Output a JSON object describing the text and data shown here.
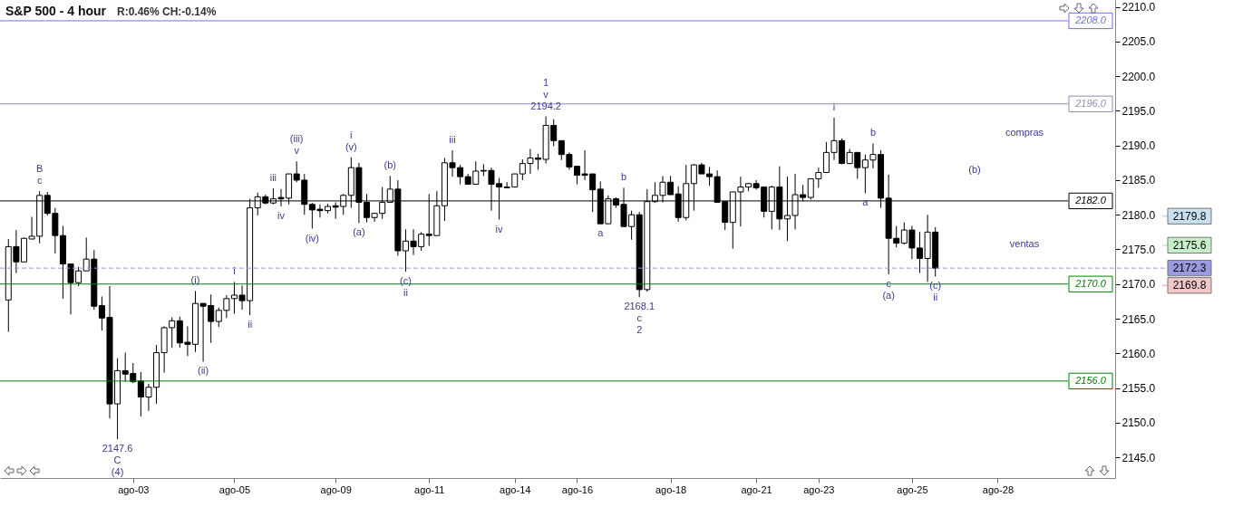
{
  "chart_data": {
    "type": "candlestick",
    "title": "S&P 500 - 4 hour",
    "subtitle": "R:0.46%  CH:-0.14%",
    "color": "#000000",
    "categories": [
      null,
      null,
      null,
      null,
      null,
      null,
      null,
      null,
      null,
      null,
      null,
      null,
      null,
      null,
      null,
      null,
      "ago-03",
      null,
      null,
      null,
      null,
      null,
      null,
      null,
      null,
      null,
      null,
      null,
      null,
      "ago-05",
      null,
      null,
      null,
      null,
      null,
      null,
      null,
      null,
      null,
      null,
      null,
      null,
      "ago-09",
      null,
      null,
      null,
      null,
      null,
      null,
      null,
      null,
      null,
      null,
      null,
      "ago-11",
      null,
      null,
      null,
      null,
      null,
      null,
      null,
      null,
      null,
      null,
      "ago-14",
      null,
      null,
      null,
      null,
      null,
      null,
      null,
      "ago-16",
      null,
      null,
      null,
      null,
      null,
      null,
      null,
      null,
      null,
      null,
      null,
      "ago-18",
      null,
      null,
      null,
      null,
      null,
      null,
      null,
      null,
      null,
      null,
      "ago-21",
      null,
      null,
      null,
      null,
      null,
      null,
      null,
      "ago-23",
      null,
      null,
      null,
      null,
      null,
      null,
      null,
      null,
      null,
      null,
      null,
      "ago-25",
      null,
      null,
      null,
      null,
      null,
      null,
      null,
      null,
      null,
      null,
      "ago-28",
      null,
      null,
      null,
      null,
      null,
      null,
      null,
      null,
      null,
      null,
      null,
      null,
      null,
      null
    ],
    "ohlc": [
      [
        2167.7,
        2176.5,
        2163.1,
        2175.4
      ],
      [
        2175.4,
        2177.8,
        2171.6,
        2173.2
      ],
      [
        2173.2,
        2176.7,
        2173.2,
        2176.6
      ],
      [
        2176.5,
        2179.7,
        2176.5,
        2176.9
      ],
      [
        2176.9,
        2183.4,
        2175.9,
        2182.8
      ],
      [
        2182.8,
        2183.3,
        2179.9,
        2180.2
      ],
      [
        2180.2,
        2181.0,
        2174.4,
        2177.0
      ],
      [
        2177.0,
        2178.4,
        2167.9,
        2172.9
      ],
      [
        2172.9,
        2172.9,
        2165.6,
        2170.2
      ],
      [
        2170.2,
        2172.5,
        2169.7,
        2171.9
      ],
      [
        2171.9,
        2176.7,
        2171.9,
        2173.6
      ],
      [
        2173.6,
        2174.9,
        2166.3,
        2166.8
      ],
      [
        2166.9,
        2168.2,
        2163.3,
        2165.1
      ],
      [
        2165.2,
        2169.7,
        2150.6,
        2152.7
      ],
      [
        2152.7,
        2159.3,
        2147.6,
        2157.5
      ],
      [
        2157.5,
        2160.1,
        2155.9,
        2157.0
      ],
      [
        2157.1,
        2158.6,
        2155.7,
        2155.9
      ],
      [
        2156.0,
        2157.3,
        2150.9,
        2153.7
      ],
      [
        2153.7,
        2155.6,
        2151.7,
        2155.1
      ],
      [
        2155.1,
        2161.2,
        2152.7,
        2160.1
      ],
      [
        2160.1,
        2163.9,
        2157.2,
        2163.7
      ],
      [
        2163.7,
        2165.2,
        2160.8,
        2164.7
      ],
      [
        2164.7,
        2165.3,
        2160.8,
        2161.5
      ],
      [
        2161.6,
        2163.9,
        2159.6,
        2161.3
      ],
      [
        2161.3,
        2169.0,
        2160.2,
        2167.2
      ],
      [
        2167.2,
        2167.2,
        2158.8,
        2166.8
      ],
      [
        2166.9,
        2168.5,
        2161.5,
        2164.6
      ],
      [
        2164.6,
        2166.6,
        2163.8,
        2166.2
      ],
      [
        2166.2,
        2168.4,
        2165.1,
        2167.9
      ],
      [
        2167.9,
        2170.3,
        2165.7,
        2168.4
      ],
      [
        2168.4,
        2169.8,
        2166.3,
        2167.6
      ],
      [
        2167.6,
        2182.3,
        2165.5,
        2181.0
      ],
      [
        2181.0,
        2183.2,
        2179.9,
        2182.6
      ],
      [
        2182.6,
        2182.9,
        2181.5,
        2181.7
      ],
      [
        2181.7,
        2183.8,
        2181.5,
        2182.3
      ],
      [
        2182.5,
        2183.7,
        2181.2,
        2182.3
      ],
      [
        2182.4,
        2185.9,
        2181.5,
        2185.9
      ],
      [
        2185.9,
        2187.7,
        2184.7,
        2185.0
      ],
      [
        2185.0,
        2185.9,
        2180.0,
        2181.5
      ],
      [
        2181.5,
        2181.7,
        2178.0,
        2180.7
      ],
      [
        2180.8,
        2181.5,
        2179.6,
        2180.6
      ],
      [
        2180.6,
        2181.6,
        2180.2,
        2181.2
      ],
      [
        2181.3,
        2181.8,
        2179.4,
        2181.1
      ],
      [
        2181.2,
        2183.0,
        2180.0,
        2182.8
      ],
      [
        2182.8,
        2188.3,
        2181.0,
        2186.8
      ],
      [
        2186.8,
        2187.5,
        2178.8,
        2181.8
      ],
      [
        2181.8,
        2183.0,
        2178.9,
        2179.6
      ],
      [
        2179.6,
        2180.3,
        2179.0,
        2180.2
      ],
      [
        2180.2,
        2184.0,
        2179.4,
        2181.8
      ],
      [
        2181.8,
        2185.6,
        2181.8,
        2183.7
      ],
      [
        2183.7,
        2185.0,
        2174.1,
        2174.8
      ],
      [
        2174.8,
        2177.9,
        2171.8,
        2176.2
      ],
      [
        2176.2,
        2177.9,
        2174.2,
        2175.4
      ],
      [
        2175.4,
        2177.5,
        2174.8,
        2177.2
      ],
      [
        2177.2,
        2183.0,
        2175.5,
        2177.0
      ],
      [
        2177.0,
        2183.4,
        2177.0,
        2181.3
      ],
      [
        2181.3,
        2188.2,
        2179.1,
        2187.5
      ],
      [
        2187.5,
        2189.3,
        2185.5,
        2186.8
      ],
      [
        2186.8,
        2187.2,
        2184.4,
        2185.5
      ],
      [
        2185.5,
        2185.9,
        2184.4,
        2184.4
      ],
      [
        2184.4,
        2187.7,
        2184.4,
        2186.3
      ],
      [
        2186.4,
        2187.3,
        2185.6,
        2186.3
      ],
      [
        2186.4,
        2186.8,
        2180.6,
        2184.4
      ],
      [
        2184.5,
        2185.3,
        2179.3,
        2184.0
      ],
      [
        2184.0,
        2184.7,
        2183.9,
        2183.9
      ],
      [
        2184.0,
        2185.9,
        2184.0,
        2185.9
      ],
      [
        2185.9,
        2188.0,
        2185.0,
        2187.4
      ],
      [
        2187.4,
        2189.5,
        2185.9,
        2188.2
      ],
      [
        2188.2,
        2188.8,
        2186.5,
        2188.0
      ],
      [
        2188.0,
        2194.2,
        2187.4,
        2192.9
      ],
      [
        2192.9,
        2193.8,
        2189.9,
        2190.7
      ],
      [
        2190.7,
        2190.7,
        2187.9,
        2188.7
      ],
      [
        2188.7,
        2189.0,
        2186.5,
        2186.9
      ],
      [
        2187.0,
        2187.0,
        2184.4,
        2185.7
      ],
      [
        2185.9,
        2189.3,
        2185.0,
        2185.7
      ],
      [
        2185.9,
        2185.9,
        2180.4,
        2183.6
      ],
      [
        2183.7,
        2184.8,
        2178.7,
        2178.7
      ],
      [
        2178.7,
        2182.8,
        2178.7,
        2182.3
      ],
      [
        2182.3,
        2182.5,
        2181.0,
        2181.4
      ],
      [
        2181.5,
        2183.9,
        2178.3,
        2178.3
      ],
      [
        2178.3,
        2180.6,
        2176.4,
        2180.0
      ],
      [
        2180.0,
        2180.4,
        2168.1,
        2169.2
      ],
      [
        2169.2,
        2183.7,
        2168.9,
        2181.9
      ],
      [
        2181.9,
        2184.7,
        2181.7,
        2182.8
      ],
      [
        2182.8,
        2185.6,
        2181.8,
        2184.7
      ],
      [
        2184.7,
        2185.6,
        2182.9,
        2182.9
      ],
      [
        2183.0,
        2184.1,
        2179.0,
        2179.6
      ],
      [
        2179.6,
        2187.2,
        2179.2,
        2184.5
      ],
      [
        2184.5,
        2187.3,
        2180.6,
        2187.2
      ],
      [
        2187.2,
        2187.5,
        2185.9,
        2185.9
      ],
      [
        2185.9,
        2186.9,
        2184.2,
        2185.5
      ],
      [
        2185.5,
        2186.4,
        2181.8,
        2181.8
      ],
      [
        2181.9,
        2181.9,
        2177.8,
        2178.9
      ],
      [
        2178.9,
        2183.3,
        2175.1,
        2183.3
      ],
      [
        2183.3,
        2185.5,
        2178.3,
        2184.0
      ],
      [
        2184.0,
        2184.5,
        2183.4,
        2184.5
      ],
      [
        2184.5,
        2185.0,
        2183.6,
        2183.9
      ],
      [
        2184.0,
        2184.0,
        2179.6,
        2180.5
      ],
      [
        2180.5,
        2184.2,
        2177.9,
        2184.0
      ],
      [
        2184.0,
        2187.0,
        2177.8,
        2179.4
      ],
      [
        2179.4,
        2185.5,
        2176.2,
        2179.9
      ],
      [
        2179.9,
        2185.9,
        2177.9,
        2182.9
      ],
      [
        2182.9,
        2184.3,
        2181.9,
        2182.5
      ],
      [
        2182.5,
        2185.2,
        2182.2,
        2185.2
      ],
      [
        2185.2,
        2186.8,
        2183.9,
        2186.1
      ],
      [
        2186.1,
        2190.5,
        2186.1,
        2189.0
      ],
      [
        2189.0,
        2194.0,
        2187.9,
        2190.7
      ],
      [
        2190.7,
        2191.0,
        2187.3,
        2187.4
      ],
      [
        2187.4,
        2189.5,
        2187.3,
        2189.0
      ],
      [
        2189.0,
        2189.0,
        2185.2,
        2186.8
      ],
      [
        2186.8,
        2188.7,
        2183.1,
        2187.9
      ],
      [
        2187.9,
        2190.3,
        2186.7,
        2188.7
      ],
      [
        2188.7,
        2189.3,
        2181.0,
        2182.4
      ],
      [
        2182.4,
        2185.8,
        2171.4,
        2176.6
      ],
      [
        2176.6,
        2178.4,
        2175.3,
        2175.9
      ],
      [
        2175.9,
        2178.9,
        2175.7,
        2177.8
      ],
      [
        2177.8,
        2178.4,
        2173.6,
        2175.2
      ],
      [
        2175.2,
        2177.5,
        2171.6,
        2173.7
      ],
      [
        2173.7,
        2180.0,
        2170.3,
        2177.5
      ],
      [
        2177.5,
        2178.2,
        2171.1,
        2172.3
      ],
      null,
      null,
      null,
      null,
      null,
      null,
      null,
      null,
      null,
      null,
      null,
      null,
      null,
      null,
      null,
      null,
      null,
      null,
      null,
      null,
      null,
      null
    ],
    "ylim": [
      2142,
      2211
    ],
    "yticks": [
      {
        "value": 2145,
        "label": "2145.0"
      },
      {
        "value": 2150,
        "label": "2150.0"
      },
      {
        "value": 2155,
        "label": "2155.0"
      },
      {
        "value": 2160,
        "label": "2160.0"
      },
      {
        "value": 2165,
        "label": "2165.0"
      },
      {
        "value": 2170,
        "label": "2170.0"
      },
      {
        "value": 2175,
        "label": "2175.0"
      },
      {
        "value": 2180,
        "label": "2180.0"
      },
      {
        "value": 2185,
        "label": "2185.0"
      },
      {
        "value": 2190,
        "label": "2190.0"
      },
      {
        "value": 2195,
        "label": "2195.0"
      },
      {
        "value": 2200,
        "label": "2200.0"
      },
      {
        "value": 2205,
        "label": "2205.0"
      },
      {
        "value": 2210,
        "label": "2210.0"
      }
    ],
    "ref_lines": [
      {
        "axis": "y",
        "value": 2208,
        "label": "2208.0",
        "color": "#6f6fe8",
        "line_style": "solid"
      },
      {
        "axis": "y",
        "value": 2196,
        "label": "2196.0",
        "color": "#8c8cb4",
        "line_style": "solid"
      },
      {
        "axis": "y",
        "value": 2182,
        "label": "2182.0",
        "color": "#000000",
        "line_style": "solid"
      },
      {
        "axis": "y",
        "value": 2170,
        "label": "2170.0",
        "color": "#008000",
        "line_style": "solid"
      },
      {
        "axis": "y",
        "value": 2156,
        "label": "2156.0",
        "color": "#008000",
        "line_style": "solid"
      },
      {
        "axis": "y",
        "value": 2172.3,
        "label": "2172.3",
        "color": "#9a9ae0",
        "line_style": "dashed"
      },
      {
        "axis": "y",
        "value": 2179.8,
        "label": "2179.8",
        "color": "#c8e0f0"
      },
      {
        "axis": "y",
        "value": 2175.6,
        "label": "2175.6",
        "color": "#c8f0c8"
      },
      {
        "axis": "y",
        "value": 2169.8,
        "label": "2169.8",
        "color": "#f0c8c8"
      }
    ],
    "annotations": [
      {
        "text": "c",
        "y": 2183.4
      },
      {
        "text": "B",
        "y": 2183.4
      },
      {
        "text": "2147.6",
        "y": 2147.6
      },
      {
        "text": "C",
        "y": 2147.6
      },
      {
        "text": "(4)",
        "y": 2147.6
      },
      {
        "text": "(i)",
        "y": 2169.0
      },
      {
        "text": "(ii)",
        "y": 2158.8
      },
      {
        "text": "i",
        "y": 2170.3
      },
      {
        "text": "ii",
        "y": 2165.5
      },
      {
        "text": "iii",
        "y": 2183.8
      },
      {
        "text": "iv",
        "y": 2181.2
      },
      {
        "text": "v",
        "y": 2187.7
      },
      {
        "text": "(iii)",
        "y": 2187.7
      },
      {
        "text": "(iv)",
        "y": 2178.0
      },
      {
        "text": "(v)",
        "y": 2188.3
      },
      {
        "text": "i",
        "y": 2188.3
      },
      {
        "text": "(a)",
        "y": 2178.8
      },
      {
        "text": "(b)",
        "y": 2185.6
      },
      {
        "text": "(c)",
        "y": 2171.8
      },
      {
        "text": "ii",
        "y": 2171.8
      },
      {
        "text": "iii",
        "y": 2189.3
      },
      {
        "text": "iv",
        "y": 2179.3
      },
      {
        "text": "2194.2",
        "y": 2194.2
      },
      {
        "text": "v",
        "y": 2194.2
      },
      {
        "text": "1",
        "y": 2194.2
      },
      {
        "text": "a",
        "y": 2178.7
      },
      {
        "text": "b",
        "y": 2183.9
      },
      {
        "text": "2168.1",
        "y": 2168.1
      },
      {
        "text": "c",
        "y": 2168.1
      },
      {
        "text": "2",
        "y": 2168.1
      },
      {
        "text": "i",
        "y": 2194.0
      },
      {
        "text": "b",
        "y": 2190.3
      },
      {
        "text": "a",
        "y": 2183.1
      },
      {
        "text": "c",
        "y": 2171.4
      },
      {
        "text": "(a)",
        "y": 2171.4
      },
      {
        "text": "(c)",
        "y": 2171.1
      },
      {
        "text": "ii",
        "y": 2171.1
      },
      "(b)",
      "compras",
      "ventas"
    ]
  }
}
